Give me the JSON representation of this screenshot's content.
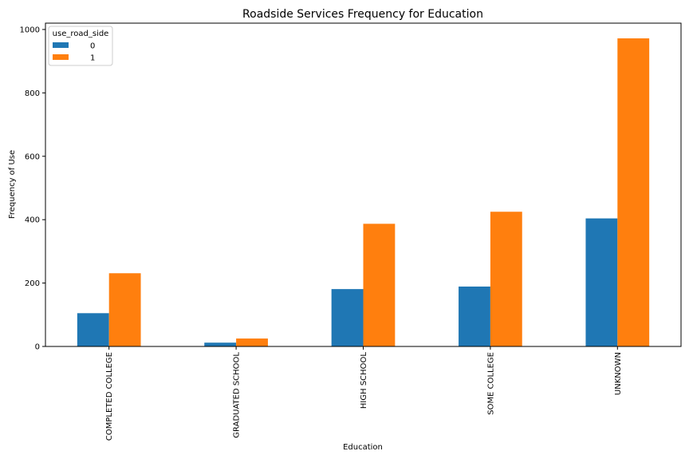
{
  "chart_data": {
    "type": "bar",
    "title": "Roadside Services Frequency for Education",
    "xlabel": "Education",
    "ylabel": "Frequency of Use",
    "categories": [
      "COMPLETED COLLEGE",
      "GRADUATED SCHOOL",
      "HIGH SCHOOL",
      "SOME COLLEGE",
      "UNKNOWN"
    ],
    "series": [
      {
        "name": "0",
        "color": "#1f77b4",
        "values": [
          105,
          12,
          181,
          189,
          404
        ]
      },
      {
        "name": "1",
        "color": "#ff7f0e",
        "values": [
          231,
          25,
          387,
          425,
          972
        ]
      }
    ],
    "ylim": [
      0,
      1020
    ],
    "yticks": [
      0,
      200,
      400,
      600,
      800,
      1000
    ],
    "legend": {
      "title": "use_road_side",
      "placement": "top-left"
    },
    "grid": false
  }
}
